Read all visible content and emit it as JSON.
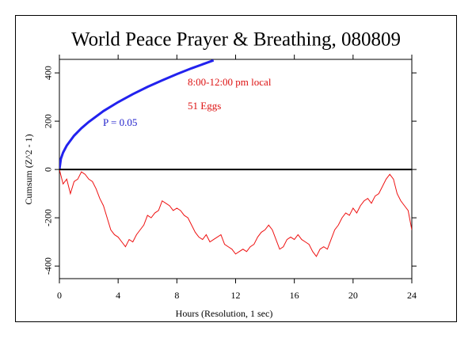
{
  "chart_data": {
    "type": "line",
    "title": "World Peace Prayer & Breathing, 080809",
    "xlabel": "Hours (Resolution, 1 sec)",
    "ylabel": "Cumsum (Z^2 - 1)",
    "xlim": [
      0,
      24
    ],
    "xticks": [
      0,
      4,
      8,
      12,
      16,
      20,
      24
    ],
    "ylim": [
      -452,
      456
    ],
    "yticks": [
      -400,
      -200,
      0,
      200,
      400
    ],
    "reference_lines": [
      0
    ],
    "annotations": [
      {
        "text": "8:00-12:00 pm local",
        "color": "#dd1111"
      },
      {
        "text": "51 Eggs",
        "color": "#dd1111"
      },
      {
        "text": "P = 0.05",
        "color": "#2222cc"
      }
    ],
    "series": [
      {
        "color": "#2222ee",
        "x": [
          0,
          0.1,
          0.25,
          0.5,
          1,
          1.5,
          2,
          3,
          4,
          5,
          6,
          7,
          8,
          9,
          10,
          10.5
        ],
        "values": [
          0,
          44,
          70,
          99,
          140,
          171,
          197,
          242,
          279,
          312,
          342,
          369,
          395,
          419,
          441,
          452
        ]
      },
      {
        "color": "#ee1111",
        "x": [
          0,
          0.25,
          0.5,
          0.75,
          1,
          1.25,
          1.5,
          1.75,
          2,
          2.25,
          2.5,
          2.75,
          3,
          3.25,
          3.5,
          3.75,
          4,
          4.25,
          4.5,
          4.75,
          5,
          5.25,
          5.5,
          5.75,
          6,
          6.25,
          6.5,
          6.75,
          7,
          7.25,
          7.5,
          7.75,
          8,
          8.25,
          8.5,
          8.75,
          9,
          9.25,
          9.5,
          9.75,
          10,
          10.25,
          10.5,
          10.75,
          11,
          11.25,
          11.5,
          11.75,
          12,
          12.25,
          12.5,
          12.75,
          13,
          13.25,
          13.5,
          13.75,
          14,
          14.25,
          14.5,
          14.75,
          15,
          15.25,
          15.5,
          15.75,
          16,
          16.25,
          16.5,
          16.75,
          17,
          17.25,
          17.5,
          17.75,
          18,
          18.25,
          18.5,
          18.75,
          19,
          19.25,
          19.5,
          19.75,
          20,
          20.25,
          20.5,
          20.75,
          21,
          21.25,
          21.5,
          21.75,
          22,
          22.25,
          22.5,
          22.75,
          23,
          23.25,
          23.5,
          23.75,
          24
        ],
        "values": [
          0,
          -60,
          -40,
          -100,
          -50,
          -40,
          -10,
          -20,
          -40,
          -50,
          -80,
          -120,
          -150,
          -200,
          -250,
          -270,
          -280,
          -300,
          -320,
          -290,
          -300,
          -270,
          -250,
          -230,
          -190,
          -200,
          -180,
          -170,
          -130,
          -140,
          -150,
          -170,
          -160,
          -170,
          -190,
          -200,
          -230,
          -260,
          -280,
          -290,
          -270,
          -300,
          -290,
          -280,
          -270,
          -310,
          -320,
          -330,
          -350,
          -340,
          -330,
          -340,
          -320,
          -310,
          -280,
          -260,
          -250,
          -230,
          -250,
          -290,
          -330,
          -320,
          -290,
          -280,
          -290,
          -270,
          -290,
          -300,
          -310,
          -340,
          -360,
          -330,
          -320,
          -330,
          -290,
          -250,
          -230,
          -200,
          -180,
          -190,
          -160,
          -180,
          -150,
          -130,
          -120,
          -140,
          -110,
          -100,
          -70,
          -40,
          -20,
          -40,
          -100,
          -130,
          -150,
          -170,
          -250
        ]
      }
    ]
  }
}
